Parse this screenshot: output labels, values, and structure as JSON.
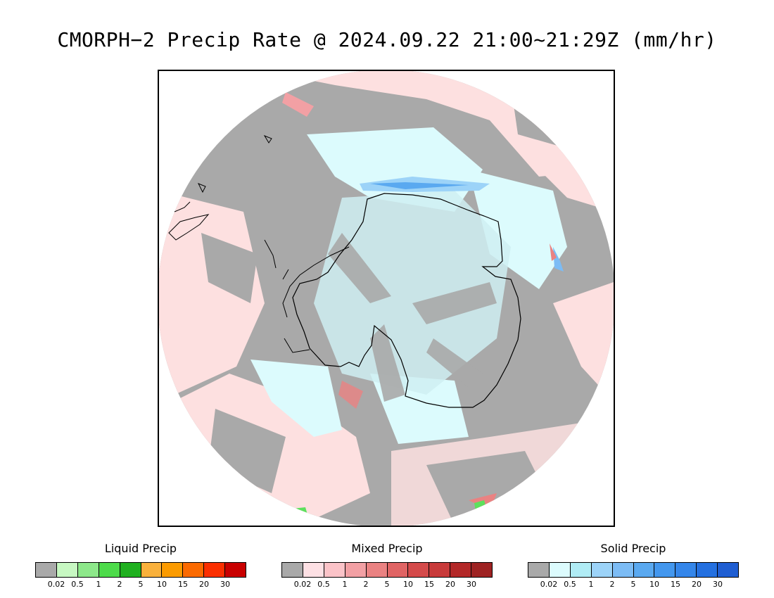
{
  "title": "CMORPH−2 Precip Rate @ 2024.09.22 21:00~21:29Z (mm/hr)",
  "map": {
    "projection": "south-polar-stereographic",
    "colors": {
      "no_data_gray": "#a9a9a9",
      "mixed_light": "#fde0e0",
      "solid_light": "#dcfbfd",
      "solid_blue": "#5aa9f0",
      "liquid_green": "#5de05d",
      "coastline": "#000000"
    }
  },
  "legends": [
    {
      "title": "Liquid Precip",
      "colors": [
        "#a9a9a9",
        "#c7f8c2",
        "#8de88a",
        "#4ddb4a",
        "#1fb01f",
        "#f9b13c",
        "#fb9b00",
        "#fb6a00",
        "#fb2f00",
        "#c90000"
      ],
      "ticks": [
        "0.02",
        "0.5",
        "1",
        "2",
        "5",
        "10",
        "15",
        "20",
        "30"
      ]
    },
    {
      "title": "Mixed Precip",
      "colors": [
        "#a9a9a9",
        "#fde0e4",
        "#fbc3c8",
        "#f2a0a4",
        "#ea8282",
        "#e06464",
        "#d44a4a",
        "#c83a3a",
        "#b32828",
        "#9e2222"
      ],
      "ticks": [
        "0.02",
        "0.5",
        "1",
        "2",
        "5",
        "10",
        "15",
        "20",
        "30"
      ]
    },
    {
      "title": "Solid Precip",
      "colors": [
        "#a9a9a9",
        "#dcfbfd",
        "#b0ecf5",
        "#9cd3f8",
        "#7cbcf5",
        "#5aa9f0",
        "#4397ee",
        "#3486ea",
        "#2470e0",
        "#1f5ed2"
      ],
      "ticks": [
        "0.02",
        "0.5",
        "1",
        "2",
        "5",
        "10",
        "15",
        "20",
        "30"
      ]
    }
  ]
}
